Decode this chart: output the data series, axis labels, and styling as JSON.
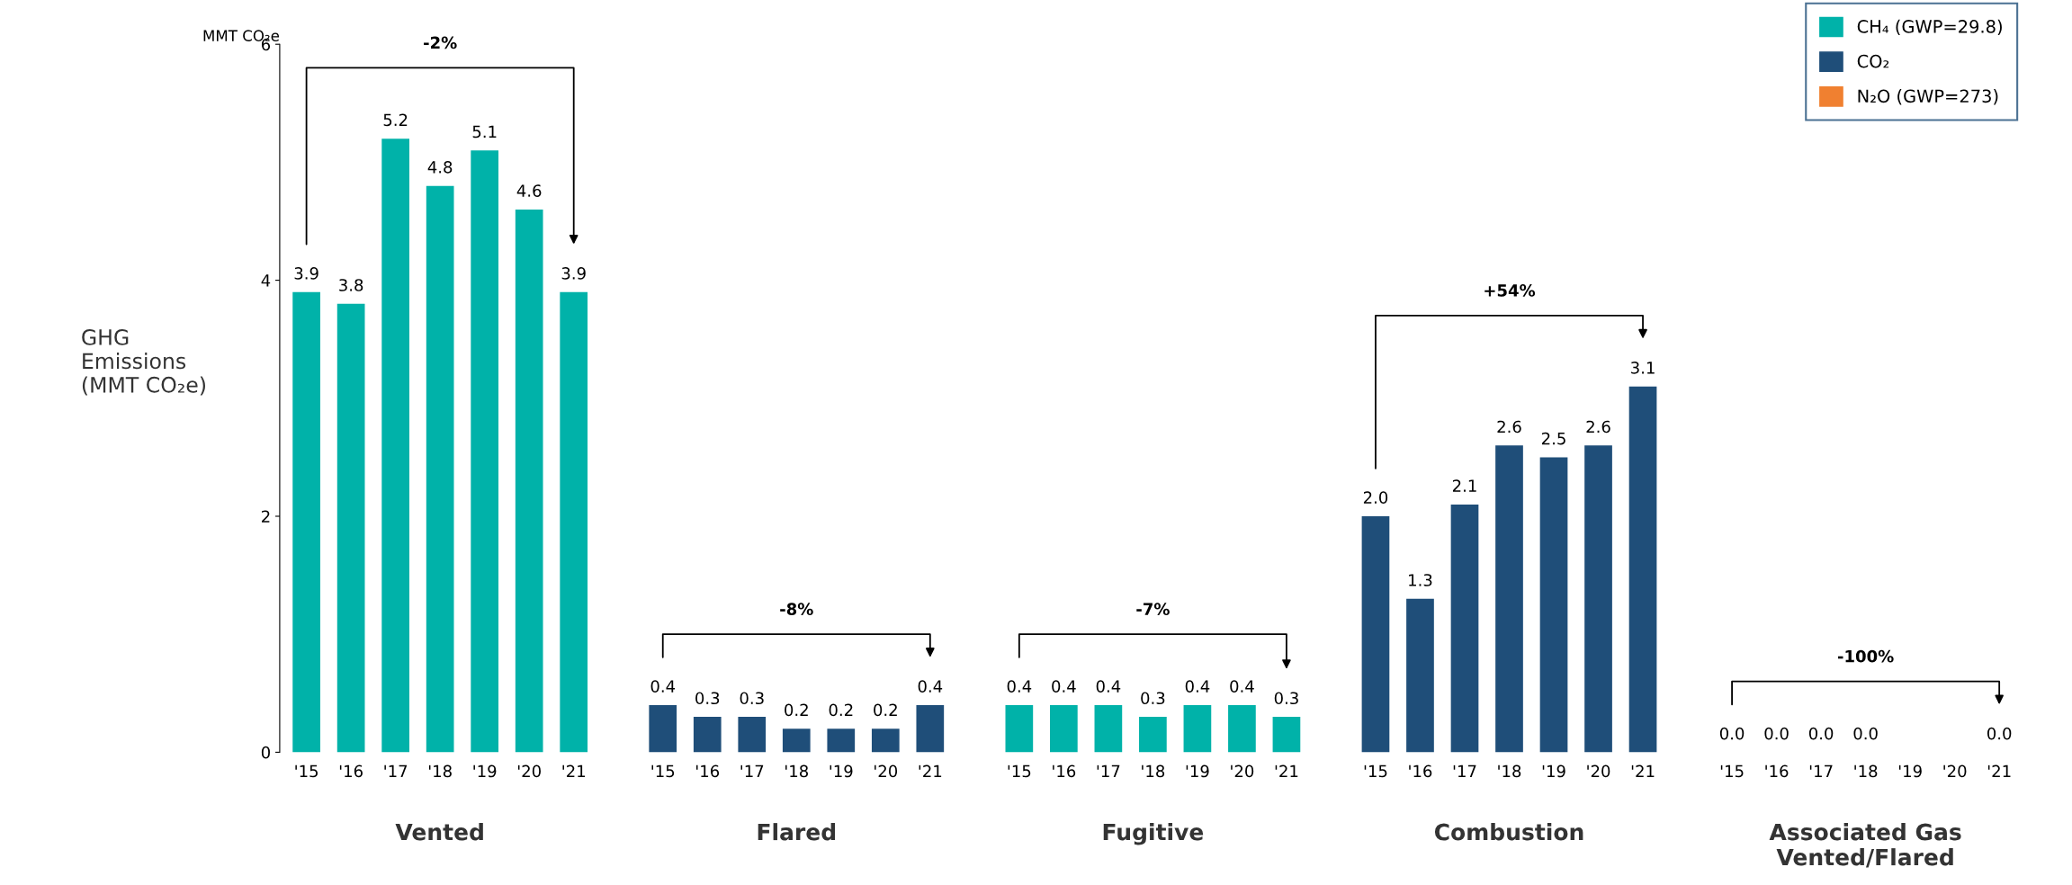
{
  "chart_data": [
    {
      "type": "bar",
      "title": "Vented",
      "ylabel": "GHG\nEmissions\n(MMT CO₂e)",
      "categories": [
        "'15",
        "'16",
        "'17",
        "'18",
        "'19",
        "'20",
        "'21"
      ],
      "ylim": [
        0,
        6
      ],
      "yticks": [
        0,
        2,
        4,
        6
      ],
      "series": [
        {
          "color": "#00b2a9",
          "values": [
            3.9,
            3.8,
            5.2,
            4.8,
            5.1,
            4.6,
            3.9
          ],
          "value_labels": [
            "3.9",
            "3.8",
            "5.2",
            "4.8",
            "5.1",
            "4.6",
            "3.9"
          ]
        }
      ],
      "annotations": [
        "MMT CO₂e",
        "-2%"
      ]
    },
    {
      "type": "bar",
      "title": "Flared",
      "categories": [
        "'15",
        "'16",
        "'17",
        "'18",
        "'19",
        "'20",
        "'21"
      ],
      "ylim": [
        0,
        6
      ],
      "tick_labels": "x",
      "series": [
        {
          "color": "#1f4e79",
          "values": [
            0.4,
            0.3,
            0.3,
            0.2,
            0.2,
            0.2,
            0.4
          ],
          "value_labels": [
            "0.4",
            "0.3",
            "0.3",
            "0.2",
            "0.2",
            "0.2",
            "0.4"
          ]
        }
      ],
      "annotations": [
        "-8%"
      ]
    },
    {
      "type": "bar",
      "title": "Fugitive",
      "categories": [
        "'15",
        "'16",
        "'17",
        "'18",
        "'19",
        "'20",
        "'21"
      ],
      "ylim": [
        0,
        6
      ],
      "tick_labels": "x",
      "series": [
        {
          "color": "#00b2a9",
          "values": [
            0.4,
            0.4,
            0.4,
            0.3,
            0.4,
            0.4,
            0.3
          ],
          "value_labels": [
            "0.4",
            "0.4",
            "0.4",
            "0.3",
            "0.4",
            "0.4",
            "0.3"
          ]
        }
      ],
      "annotations": [
        "-7%"
      ]
    },
    {
      "type": "bar",
      "title": "Combustion",
      "categories": [
        "'15",
        "'16",
        "'17",
        "'18",
        "'19",
        "'20",
        "'21"
      ],
      "ylim": [
        0,
        6
      ],
      "tick_labels": "x",
      "series": [
        {
          "color": "#1f4e79",
          "values": [
            2.0,
            1.3,
            2.1,
            2.6,
            2.5,
            2.6,
            3.1
          ],
          "value_labels": [
            "2.0",
            "1.3",
            "2.1",
            "2.6",
            "2.5",
            "2.6",
            "3.1"
          ]
        }
      ],
      "annotations": [
        "+54%"
      ]
    },
    {
      "type": "bar",
      "title": "Associated Gas\nVented/Flared",
      "categories": [
        "'15",
        "'16",
        "'17",
        "'18",
        "'19",
        "'20",
        "'21"
      ],
      "ylim": [
        0,
        6
      ],
      "tick_labels": "x",
      "legend": "top right",
      "series": [
        {
          "name": "CH₄ (GWP=29.8)",
          "color": "#00b2a9",
          "values": [
            null,
            null,
            null,
            null,
            null,
            null,
            null
          ]
        },
        {
          "name": "CO₂",
          "color": "#1f4e79",
          "values": [
            0.0,
            0.0,
            0.0,
            0.0,
            null,
            null,
            0.0
          ],
          "value_labels": [
            "0.0",
            "0.0",
            "0.0",
            "0.0",
            null,
            null,
            "0.0"
          ]
        },
        {
          "name": "N₂O (GWP=273)",
          "color": "#f08030",
          "values": [
            null,
            null,
            null,
            null,
            null,
            null,
            null
          ]
        }
      ],
      "annotations": [
        "-100%"
      ]
    }
  ]
}
